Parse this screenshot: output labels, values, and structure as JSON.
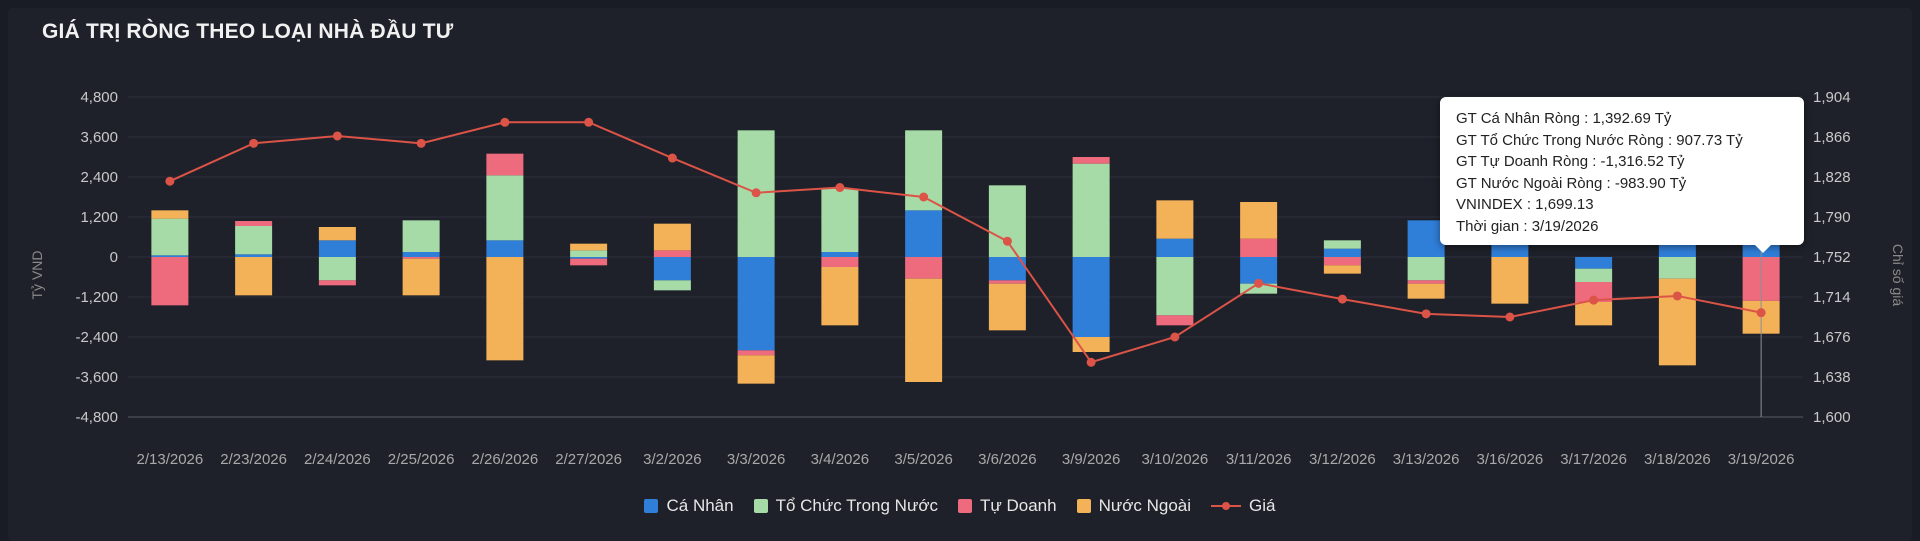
{
  "title": "GIÁ TRỊ RÒNG THEO LOẠI NHÀ ĐẦU TƯ",
  "colors": {
    "ca_nhan": "#2f7ed8",
    "to_chuc": "#a6dba7",
    "tu_doanh": "#ee6b7e",
    "nuoc_ngoai": "#f3b158",
    "gia": "#dc5347"
  },
  "legend": [
    "Cá Nhân",
    "Tổ Chức Trong Nước",
    "Tự Doanh",
    "Nước Ngoài",
    "Giá"
  ],
  "tooltip": {
    "lines": [
      "GT Cá Nhân Ròng  : 1,392.69 Tỷ",
      "GT Tổ Chức Trong Nước Ròng : 907.73 Tỷ",
      "GT Tự Doanh Ròng : -1,316.52 Tỷ",
      "GT Nước Ngoài Ròng : -983.90 Tỷ",
      "VNINDEX : 1,699.13",
      "Thời gian : 3/19/2026"
    ]
  },
  "chart_data": {
    "type": "bar",
    "stacked": true,
    "categories": [
      "2/13/2026",
      "2/23/2026",
      "2/24/2026",
      "2/25/2026",
      "2/26/2026",
      "2/27/2026",
      "3/2/2026",
      "3/3/2026",
      "3/4/2026",
      "3/5/2026",
      "3/6/2026",
      "3/9/2026",
      "3/10/2026",
      "3/11/2026",
      "3/12/2026",
      "3/13/2026",
      "3/16/2026",
      "3/17/2026",
      "3/18/2026",
      "3/19/2026"
    ],
    "ylabel": "Tỷ VND",
    "y2label": "Chỉ số giá",
    "ylim": [
      -4800,
      4800
    ],
    "y2lim": [
      1600,
      1904
    ],
    "yticks": [
      "4,800",
      "3,600",
      "2,400",
      "1,200",
      "0",
      "-1,200",
      "-2,400",
      "-3,600",
      "-4,800"
    ],
    "y2ticks": [
      "1,904",
      "1,866",
      "1,828",
      "1,790",
      "1,752",
      "1,714",
      "1,676",
      "1,638",
      "1,600"
    ],
    "series": [
      {
        "name": "Cá Nhân",
        "key": "ca_nhan",
        "values": [
          50,
          80,
          500,
          150,
          500,
          -50,
          -700,
          -2800,
          150,
          1400,
          -700,
          -2400,
          550,
          -800,
          250,
          1100,
          600,
          -350,
          750,
          1392.69
        ]
      },
      {
        "name": "Tổ Chức Trong Nước",
        "key": "to_chuc",
        "values": [
          1100,
          850,
          -700,
          950,
          1950,
          200,
          -300,
          3800,
          1900,
          2400,
          2150,
          2800,
          -1750,
          -300,
          250,
          -700,
          500,
          -400,
          -650,
          907.73
        ]
      },
      {
        "name": "Tự Doanh",
        "key": "tu_doanh",
        "values": [
          -1450,
          150,
          -150,
          -50,
          650,
          -200,
          200,
          -150,
          -300,
          -650,
          -100,
          200,
          -300,
          550,
          -250,
          -100,
          300,
          -600,
          350,
          -1316.52
        ]
      },
      {
        "name": "Nước Ngoài",
        "key": "nuoc_ngoai",
        "values": [
          250,
          -1150,
          400,
          -1100,
          -3100,
          200,
          800,
          -850,
          -1750,
          -3100,
          -1400,
          -450,
          1150,
          1100,
          -250,
          -450,
          -1400,
          -700,
          -2600,
          -983.9
        ]
      }
    ],
    "line": {
      "name": "Giá",
      "axis": "right",
      "values": [
        1824,
        1860,
        1867,
        1860,
        1880,
        1880,
        1846,
        1813,
        1818,
        1809,
        1767,
        1652,
        1676,
        1727,
        1712,
        1698,
        1695,
        1711,
        1715,
        1699.13
      ]
    },
    "legend_position": "bottom-center",
    "grid": true,
    "active_index": 19
  }
}
